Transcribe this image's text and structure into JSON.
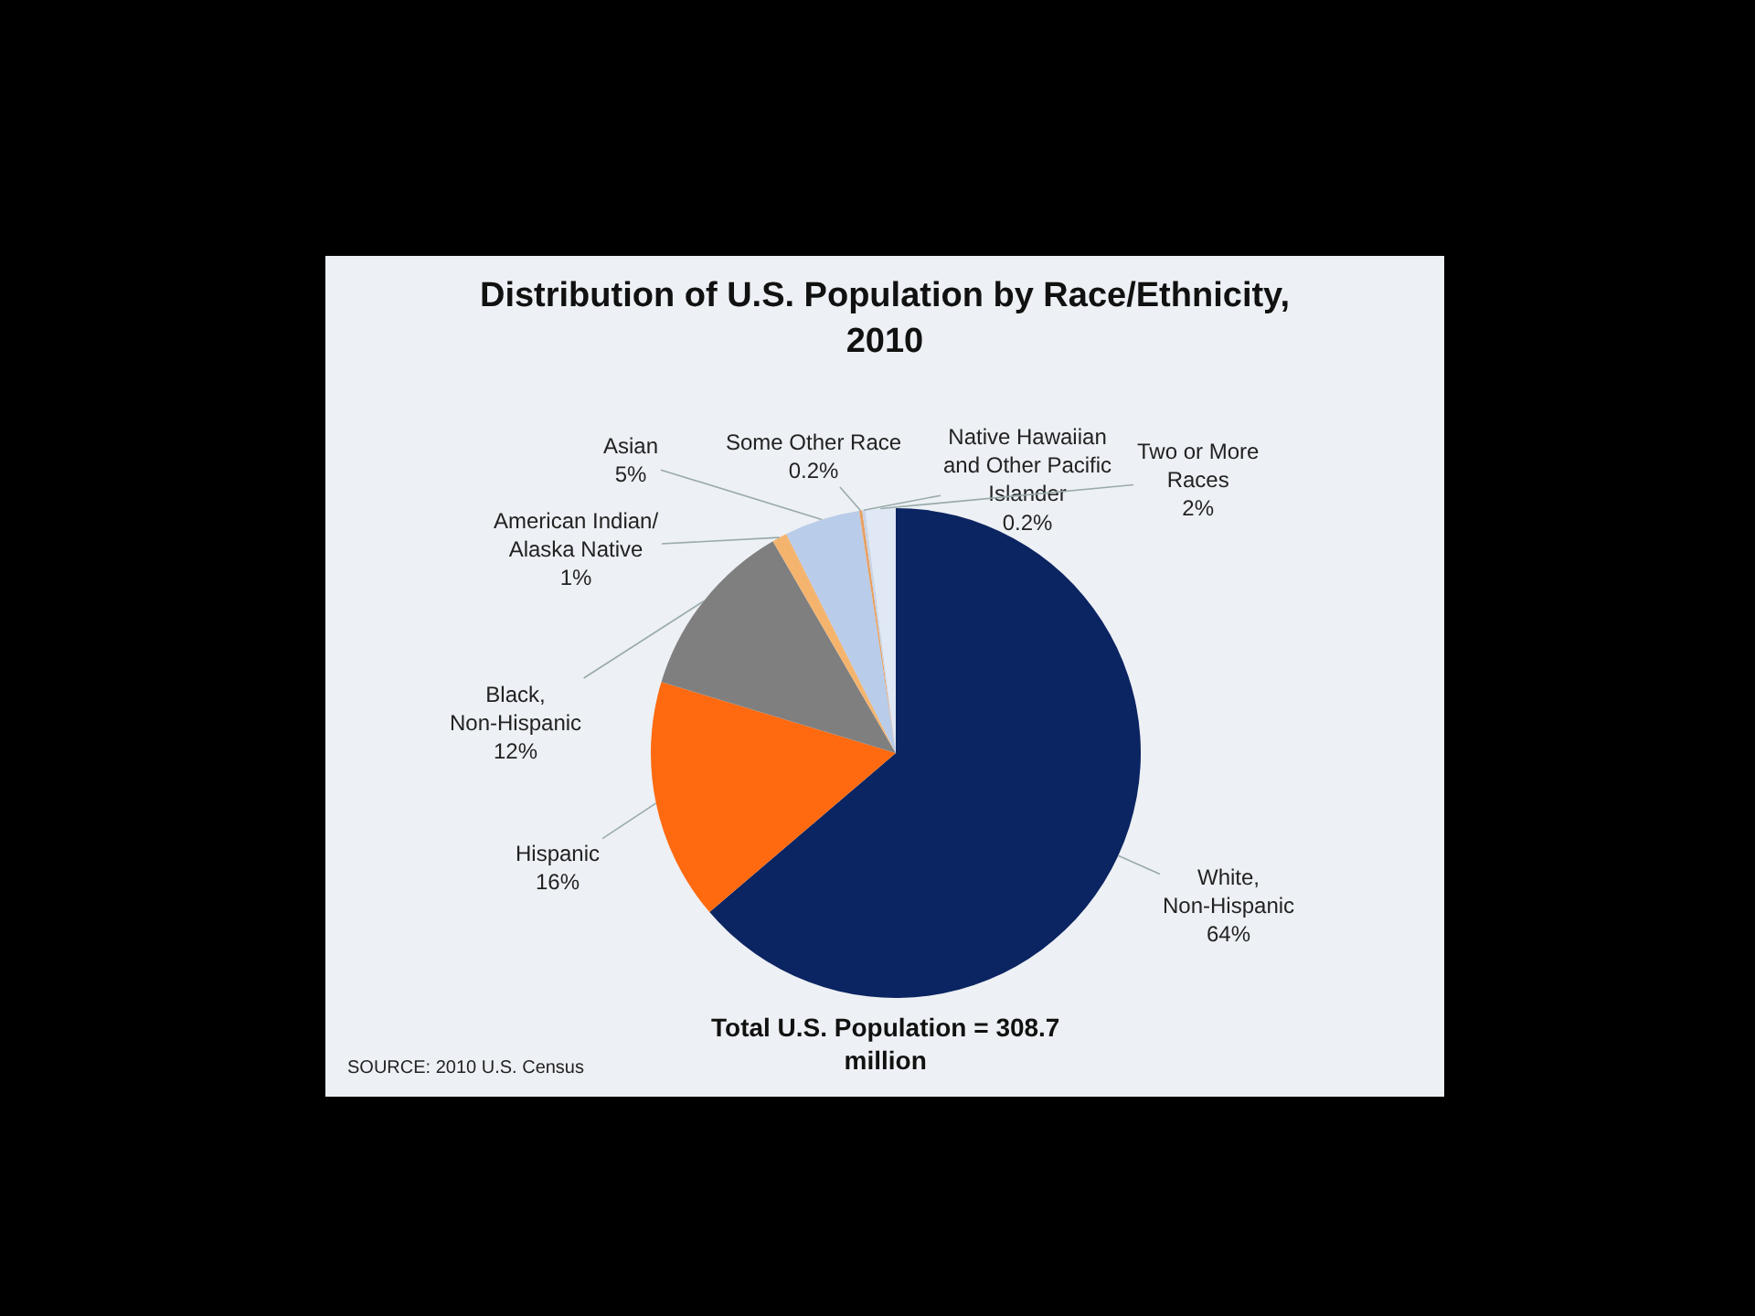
{
  "chart_data": {
    "type": "pie",
    "title": "Distribution of U.S. Population by Race/Ethnicity, 2010",
    "categories": [
      "White, Non-Hispanic",
      "Hispanic",
      "Black, Non-Hispanic",
      "American Indian/ Alaska Native",
      "Asian",
      "Some Other Race",
      "Native Hawaiian and Other Pacific Islander",
      "Two or More Races"
    ],
    "values": [
      64,
      16,
      12,
      1,
      5,
      0.2,
      0.2,
      2
    ],
    "value_labels": [
      "64%",
      "16%",
      "12%",
      "1%",
      "5%",
      "0.2%",
      "0.2%",
      "2%"
    ],
    "colors": [
      "#0b2462",
      "#ff6a10",
      "#7f7f7f",
      "#f5b46e",
      "#b9cce9",
      "#e8a060",
      "#c9d4e6",
      "#dfe8f4"
    ],
    "annotations": [
      "Total U.S. Population = 308.7 million",
      "SOURCE: 2010 U.S. Census"
    ]
  }
}
